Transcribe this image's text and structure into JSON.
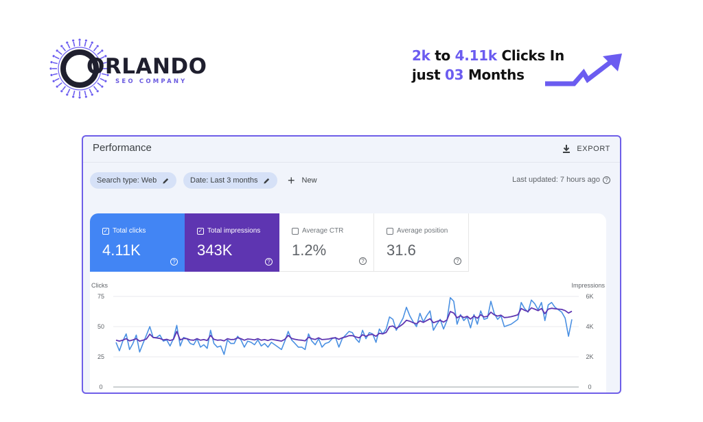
{
  "brand": {
    "name": "ORLANDO",
    "tagline": "SEO COMPANY",
    "accent_color": "#6b5cf0",
    "icon": "sun-gear-logo-icon"
  },
  "headline": {
    "from": "2k",
    "to_word": "to",
    "to_value": "4.11k",
    "metric": "Clicks In",
    "prefix2": "just",
    "months_value": "03",
    "months_word": "Months",
    "arrow_icon": "trend-up-arrow-icon"
  },
  "performance": {
    "title": "Performance",
    "export_label": "EXPORT",
    "export_icon": "download-icon",
    "filters": {
      "search_type": "Search type: Web",
      "date": "Date: Last 3 months",
      "edit_icon": "pencil-icon"
    },
    "new_label": "New",
    "last_updated": "Last updated: 7 hours ago",
    "metrics": [
      {
        "label": "Total clicks",
        "value": "4.11K",
        "checked": true,
        "color": "#4285f4"
      },
      {
        "label": "Total impressions",
        "value": "343K",
        "checked": true,
        "color": "#5e35b1"
      },
      {
        "label": "Average CTR",
        "value": "1.2%",
        "checked": false
      },
      {
        "label": "Average position",
        "value": "31.6",
        "checked": false
      }
    ]
  },
  "chart_data": {
    "type": "line",
    "left_axis_label": "Clicks",
    "right_axis_label": "Impressions",
    "left_ticks": [
      "0",
      "25",
      "50",
      "75"
    ],
    "right_ticks": [
      "0",
      "2K",
      "4K",
      "6K"
    ],
    "left_ylim": [
      0,
      75
    ],
    "right_ylim": [
      0,
      6000
    ],
    "grid": true,
    "legend": "none",
    "series": [
      {
        "color": "#4a90e2",
        "axis": "left",
        "values": [
          37,
          30,
          38,
          44,
          31,
          36,
          43,
          29,
          36,
          43,
          50,
          41,
          41,
          43,
          38,
          39,
          34,
          40,
          51,
          34,
          41,
          40,
          36,
          35,
          40,
          33,
          35,
          32,
          47,
          36,
          33,
          34,
          27,
          39,
          36,
          36,
          42,
          39,
          33,
          38,
          37,
          35,
          39,
          34,
          36,
          33,
          37,
          35,
          33,
          31,
          38,
          46,
          39,
          36,
          33,
          33,
          31,
          44,
          38,
          35,
          40,
          33,
          36,
          37,
          40,
          41,
          33,
          40,
          43,
          46,
          45,
          40,
          37,
          47,
          40,
          45,
          44,
          37,
          48,
          44,
          48,
          58,
          56,
          47,
          52,
          57,
          66,
          59,
          54,
          50,
          61,
          54,
          59,
          63,
          47,
          52,
          56,
          48,
          55,
          74,
          71,
          52,
          60,
          55,
          58,
          49,
          60,
          52,
          63,
          56,
          57,
          71,
          61,
          56,
          59,
          50,
          51,
          52,
          54,
          56,
          70,
          65,
          62,
          72,
          69,
          64,
          70,
          55,
          68,
          70,
          66,
          64,
          62,
          57,
          42,
          56
        ]
      },
      {
        "color": "#5e35b1",
        "axis": "right",
        "values": [
          3100,
          3040,
          3100,
          3200,
          3060,
          3120,
          3200,
          3040,
          3100,
          3180,
          3500,
          3280,
          3250,
          3220,
          3120,
          3160,
          3080,
          3150,
          3680,
          3120,
          3220,
          3200,
          3120,
          3100,
          3200,
          3100,
          3140,
          3080,
          3420,
          3160,
          3100,
          3120,
          3060,
          3200,
          3140,
          3150,
          3260,
          3200,
          3100,
          3180,
          3160,
          3120,
          3200,
          3100,
          3140,
          3080,
          3160,
          3120,
          3080,
          3040,
          3160,
          3420,
          3220,
          3160,
          3120,
          3100,
          3060,
          3300,
          3200,
          3150,
          3260,
          3140,
          3160,
          3180,
          3240,
          3260,
          3160,
          3260,
          3320,
          3400,
          3400,
          3320,
          3260,
          3460,
          3360,
          3460,
          3480,
          3360,
          3560,
          3520,
          3620,
          4000,
          4040,
          3880,
          4020,
          4180,
          4420,
          4360,
          4260,
          4180,
          4380,
          4280,
          4400,
          4520,
          4260,
          4340,
          4420,
          4300,
          4440,
          5000,
          4900,
          4580,
          4720,
          4600,
          4680,
          4500,
          4700,
          4560,
          4780,
          4640,
          4680,
          4960,
          4780,
          4700,
          4760,
          4600,
          4620,
          4660,
          4720,
          4780,
          5200,
          5080,
          5000,
          5240,
          5160,
          5060,
          5200,
          4860,
          5160,
          5220,
          5180,
          5160,
          5140,
          5060,
          4900,
          5020
        ]
      }
    ]
  }
}
